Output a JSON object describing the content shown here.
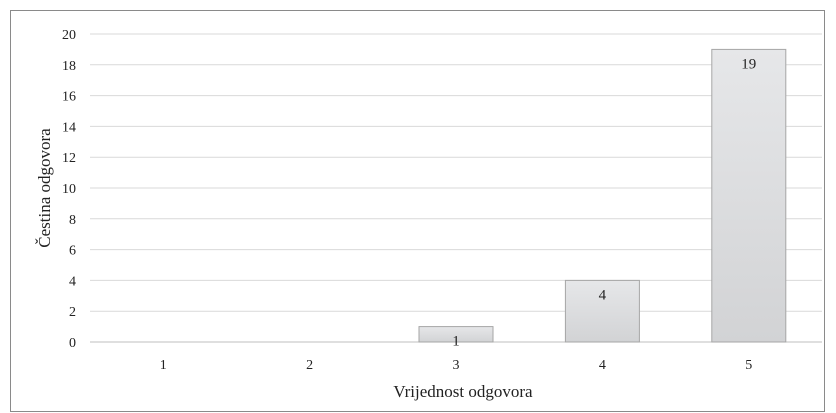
{
  "chart_data": {
    "type": "bar",
    "categories": [
      "1",
      "2",
      "3",
      "4",
      "5"
    ],
    "values": [
      0,
      0,
      1,
      4,
      19
    ],
    "data_labels": [
      "",
      "",
      "1",
      "4",
      "19"
    ],
    "xlabel": "Vrijednost odgovora",
    "ylabel": "Čestina odgovora",
    "ylim": [
      0,
      20
    ],
    "yticks": [
      0,
      2,
      4,
      6,
      8,
      10,
      12,
      14,
      16,
      18,
      20
    ],
    "grid": true,
    "bar_color": "#d9dadc",
    "bar_edge_color": "#a6a6a6"
  }
}
